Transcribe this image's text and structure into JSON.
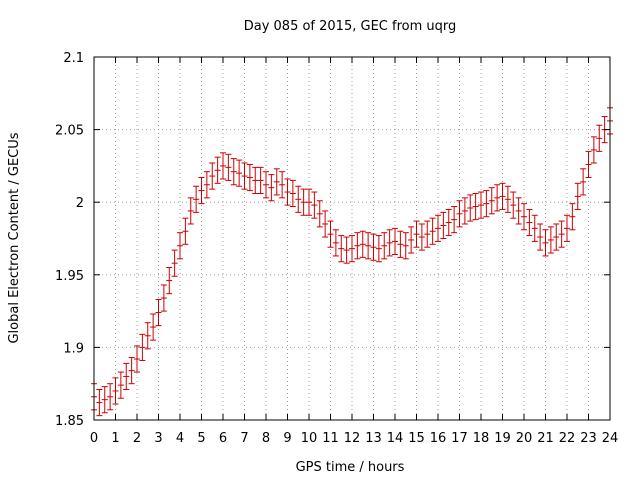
{
  "chart_data": {
    "type": "scatter",
    "title": "Day 085 of 2015, GEC from uqrg",
    "xlabel": "GPS time / hours",
    "ylabel": "Global Electron Content / GECUs",
    "xlim": [
      0,
      24
    ],
    "ylim": [
      1.85,
      2.1
    ],
    "x_ticks": [
      0,
      1,
      2,
      3,
      4,
      5,
      6,
      7,
      8,
      9,
      10,
      11,
      12,
      13,
      14,
      15,
      16,
      17,
      18,
      19,
      20,
      21,
      22,
      23,
      24
    ],
    "y_ticks": [
      1.85,
      1.9,
      1.95,
      2,
      2.05,
      2.1
    ],
    "y_tick_labels": [
      "1.85",
      "1.9",
      "1.95",
      "2",
      "2.05",
      "2.1"
    ],
    "grid": true,
    "series_color": "#cc0000",
    "error": 0.009,
    "x": [
      0,
      0.25,
      0.5,
      0.75,
      1,
      1.25,
      1.5,
      1.75,
      2,
      2.25,
      2.5,
      2.75,
      3,
      3.25,
      3.5,
      3.75,
      4,
      4.25,
      4.5,
      4.75,
      5,
      5.25,
      5.5,
      5.75,
      6,
      6.25,
      6.5,
      6.75,
      7,
      7.25,
      7.5,
      7.75,
      8,
      8.25,
      8.5,
      8.75,
      9,
      9.25,
      9.5,
      9.75,
      10,
      10.25,
      10.5,
      10.75,
      11,
      11.25,
      11.5,
      11.75,
      12,
      12.25,
      12.5,
      12.75,
      13,
      13.25,
      13.5,
      13.75,
      14,
      14.25,
      14.5,
      14.75,
      15,
      15.25,
      15.5,
      15.75,
      16,
      16.25,
      16.5,
      16.75,
      17,
      17.25,
      17.5,
      17.75,
      18,
      18.25,
      18.5,
      18.75,
      19,
      19.25,
      19.5,
      19.75,
      20,
      20.25,
      20.5,
      20.75,
      21,
      21.25,
      21.5,
      21.75,
      22,
      22.25,
      22.5,
      22.75,
      23,
      23.25,
      23.5,
      23.75,
      24
    ],
    "y": [
      1.866,
      1.862,
      1.864,
      1.866,
      1.87,
      1.874,
      1.88,
      1.884,
      1.892,
      1.9,
      1.908,
      1.914,
      1.924,
      1.934,
      1.946,
      1.958,
      1.97,
      1.98,
      1.994,
      2.002,
      2.008,
      2.012,
      2.018,
      2.022,
      2.025,
      2.024,
      2.021,
      2.02,
      2.018,
      2.017,
      2.015,
      2.015,
      2.012,
      2.01,
      2.014,
      2.012,
      2.007,
      2.006,
      2.002,
      2.0,
      2.0,
      1.998,
      1.992,
      1.985,
      1.978,
      1.972,
      1.968,
      1.967,
      1.968,
      1.97,
      1.971,
      1.97,
      1.969,
      1.968,
      1.97,
      1.972,
      1.973,
      1.971,
      1.97,
      1.974,
      1.978,
      1.976,
      1.978,
      1.98,
      1.982,
      1.984,
      1.986,
      1.988,
      1.992,
      1.994,
      1.996,
      1.997,
      1.998,
      1.999,
      2.001,
      2.003,
      2.004,
      2.002,
      1.998,
      1.994,
      1.99,
      1.986,
      1.982,
      1.976,
      1.972,
      1.974,
      1.976,
      1.978,
      1.982,
      1.99,
      2.004,
      2.014,
      2.026,
      2.036,
      2.044,
      2.05,
      2.056
    ]
  }
}
